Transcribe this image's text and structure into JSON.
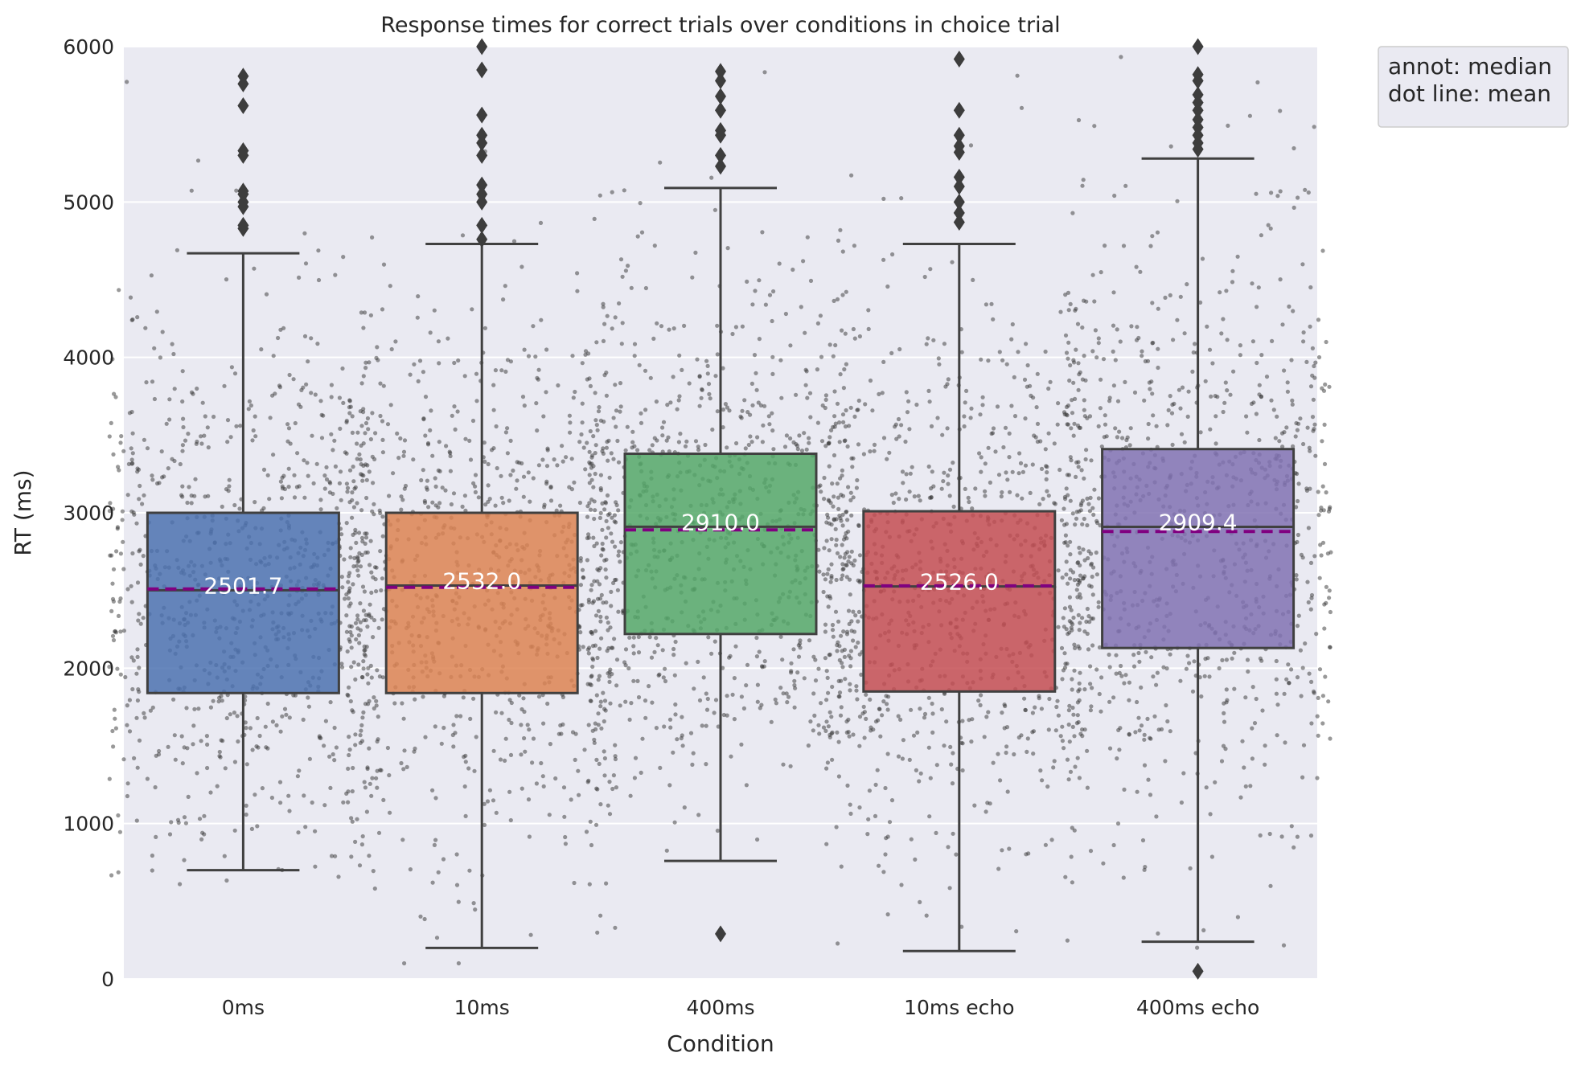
{
  "chart_data": {
    "type": "box",
    "title": "Response times for correct trials over conditions in choice trial",
    "xlabel": "Condition",
    "ylabel": "RT (ms)",
    "ylim": [
      0,
      6000
    ],
    "yticks": [
      0,
      1000,
      2000,
      3000,
      4000,
      5000,
      6000
    ],
    "grid": true,
    "legend_position": "outside top-right",
    "legend_lines": [
      "annot: median",
      "dot line: mean"
    ],
    "mean_line_color": "#800080",
    "whisker_color": "#404040",
    "background_color": "#EAEAF2",
    "categories": [
      "0ms",
      "10ms",
      "400ms",
      "10ms echo",
      "400ms echo"
    ],
    "boxes": [
      {
        "name": "0ms",
        "color": "#4C72B0",
        "whisker_low": 700,
        "q1": 1840,
        "median": 2501.7,
        "mean": 2510,
        "q3": 3000,
        "whisker_high": 4670,
        "median_label": "2501.7",
        "outliers": [
          4830,
          4850,
          4970,
          5000,
          5050,
          5070,
          5300,
          5330,
          5620,
          5760,
          5810
        ]
      },
      {
        "name": "10ms",
        "color": "#DD8452",
        "whisker_low": 200,
        "q1": 1840,
        "median": 2532.0,
        "mean": 2520,
        "q3": 3000,
        "whisker_high": 4730,
        "median_label": "2532.0",
        "outliers": [
          4760,
          4850,
          5000,
          5050,
          5110,
          5300,
          5380,
          5430,
          5560,
          5850,
          6000
        ]
      },
      {
        "name": "400ms",
        "color": "#55A868",
        "whisker_low": 760,
        "q1": 2220,
        "median": 2910.0,
        "mean": 2890,
        "q3": 3380,
        "whisker_high": 5090,
        "median_label": "2910.0",
        "outliers": [
          290,
          5230,
          5300,
          5430,
          5460,
          5590,
          5680,
          5780,
          5840
        ]
      },
      {
        "name": "10ms echo",
        "color": "#C44E52",
        "whisker_low": 180,
        "q1": 1850,
        "median": 2526.0,
        "mean": 2530,
        "q3": 3010,
        "whisker_high": 4730,
        "median_label": "2526.0",
        "outliers": [
          4870,
          4930,
          5000,
          5100,
          5160,
          5320,
          5360,
          5430,
          5590,
          5920
        ]
      },
      {
        "name": "400ms echo",
        "color": "#8172B3",
        "whisker_low": 240,
        "q1": 2130,
        "median": 2909.4,
        "mean": 2880,
        "q3": 3410,
        "whisker_high": 5280,
        "median_label": "2909.4",
        "outliers": [
          50,
          5340,
          5380,
          5430,
          5480,
          5530,
          5590,
          5640,
          5690,
          5780,
          5820,
          6000
        ]
      }
    ]
  }
}
